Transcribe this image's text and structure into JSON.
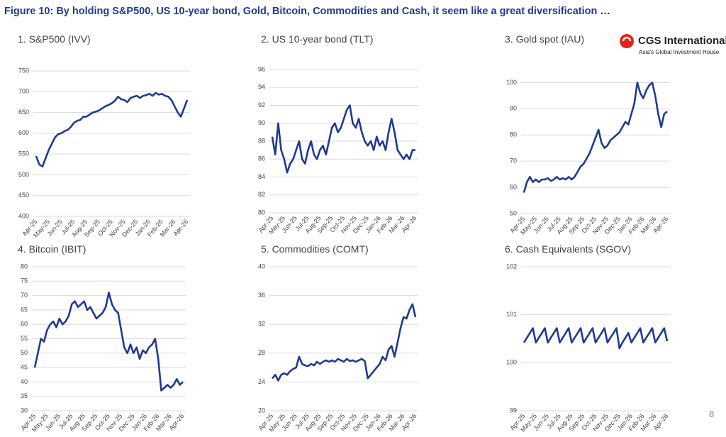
{
  "header": {
    "title": "Figure 10: By holding S&P500, US 10-year bond, Gold, Bitcoin, Commodities and Cash, it seem like a great diversification …"
  },
  "logo": {
    "name": "CGS International",
    "tagline": "Asia's Global Investment House"
  },
  "page_number": 8,
  "chart_data": [
    {
      "type": "line",
      "title": "1. S&P500 (IVV)",
      "color": "#1f3a93",
      "grid": true,
      "categories": [
        "Apr-25",
        null,
        null,
        null,
        "May-25",
        null,
        null,
        null,
        "Jun-25",
        null,
        null,
        null,
        "Jul-25",
        null,
        null,
        null,
        "Aug-25",
        null,
        null,
        null,
        "Sep-25",
        null,
        null,
        null,
        "Oct-25",
        null,
        null,
        null,
        "Nov-25",
        null,
        null,
        null,
        "Dec-25",
        null,
        null,
        null,
        "Jan-26",
        null,
        null,
        null,
        "Feb-26",
        null,
        null,
        null,
        "Mar-26",
        null,
        null,
        null,
        "Apr-26"
      ],
      "values": [
        545,
        525,
        520,
        540,
        560,
        575,
        590,
        598,
        600,
        605,
        608,
        615,
        625,
        630,
        632,
        640,
        640,
        645,
        650,
        652,
        655,
        660,
        665,
        668,
        672,
        678,
        688,
        682,
        680,
        675,
        685,
        688,
        690,
        685,
        690,
        692,
        695,
        690,
        697,
        693,
        695,
        690,
        688,
        680,
        665,
        650,
        640,
        660,
        680
      ],
      "ylim": [
        400,
        750
      ],
      "yticks": [
        400,
        450,
        500,
        550,
        600,
        650,
        700,
        750
      ]
    },
    {
      "type": "line",
      "title": "2. US 10-year bond (TLT)",
      "color": "#1f3a93",
      "grid": true,
      "categories": [
        "Apr-25",
        null,
        null,
        null,
        "May-25",
        null,
        null,
        null,
        "Jun-25",
        null,
        null,
        null,
        "Jul-25",
        null,
        null,
        null,
        "Aug-25",
        null,
        null,
        null,
        "Sep-25",
        null,
        null,
        null,
        "Oct-25",
        null,
        null,
        null,
        "Nov-25",
        null,
        null,
        null,
        "Dec-25",
        null,
        null,
        null,
        "Jan-26",
        null,
        null,
        null,
        "Feb-26",
        null,
        null,
        null,
        "Mar-26",
        null,
        null,
        null,
        "Apr-26"
      ],
      "values": [
        88.5,
        86.5,
        90,
        87,
        86,
        84.5,
        85.5,
        86,
        87,
        88,
        86,
        85.5,
        87,
        88,
        86.5,
        86,
        87,
        87.5,
        86.5,
        88,
        89.5,
        90,
        89,
        89.5,
        90.5,
        91.5,
        92,
        90,
        89.5,
        90.5,
        89,
        88,
        87.5,
        88,
        87,
        88.5,
        87.5,
        88,
        87,
        89,
        90.5,
        89,
        87,
        86.5,
        86,
        86.5,
        86,
        87,
        87
      ],
      "ylim": [
        80,
        96
      ],
      "yticks": [
        80,
        82,
        84,
        86,
        88,
        90,
        92,
        94,
        96
      ]
    },
    {
      "type": "line",
      "title": "3. Gold spot (IAU)",
      "color": "#1f3a93",
      "grid": true,
      "categories": [
        "Apr-25",
        null,
        null,
        null,
        "May-25",
        null,
        null,
        null,
        "Jun-25",
        null,
        null,
        null,
        "Jul-25",
        null,
        null,
        null,
        "Aug-25",
        null,
        null,
        null,
        "Sep-25",
        null,
        null,
        null,
        "Oct-25",
        null,
        null,
        null,
        "Nov-25",
        null,
        null,
        null,
        "Dec-25",
        null,
        null,
        null,
        "Jan-26",
        null,
        null,
        null,
        "Feb-26",
        null,
        null,
        null,
        "Mar-26",
        null,
        null,
        null,
        "Apr-26"
      ],
      "values": [
        58,
        62,
        64,
        62,
        63,
        62,
        63,
        63,
        63.5,
        62.5,
        63,
        64,
        63,
        63.5,
        63,
        64,
        63,
        64,
        66,
        68,
        69,
        71,
        73,
        76,
        79,
        82,
        77,
        75,
        76,
        78,
        79,
        80,
        81,
        83,
        85,
        84,
        88,
        92,
        100,
        96,
        94,
        97,
        99,
        100,
        95,
        88,
        83,
        88,
        89
      ],
      "ylim": [
        50,
        105
      ],
      "yticks": [
        50,
        60,
        70,
        80,
        90,
        100
      ]
    },
    {
      "type": "line",
      "title": "4. Bitcoin (IBIT)",
      "color": "#1f3a93",
      "grid": true,
      "categories": [
        "Apr-25",
        null,
        null,
        null,
        "May-25",
        null,
        null,
        null,
        "Jun-25",
        null,
        null,
        null,
        "Jul-25",
        null,
        null,
        null,
        "Aug-25",
        null,
        null,
        null,
        "Sep-25",
        null,
        null,
        null,
        "Oct-25",
        null,
        null,
        null,
        "Nov-25",
        null,
        null,
        null,
        "Dec-25",
        null,
        null,
        null,
        "Jan-26",
        null,
        null,
        null,
        "Feb-26",
        null,
        null,
        null,
        "Mar-26",
        null,
        null,
        null,
        "Apr-26"
      ],
      "values": [
        45,
        50,
        55,
        54,
        58,
        60,
        61,
        59,
        62,
        60,
        61,
        63,
        67,
        68,
        66,
        67,
        68,
        65,
        66,
        64,
        62,
        63,
        64,
        66,
        71,
        67,
        65,
        64,
        58,
        52,
        50,
        53,
        50,
        52,
        48,
        51,
        50,
        52,
        53,
        55,
        48,
        37,
        38,
        39,
        38,
        39,
        41,
        39,
        40
      ],
      "ylim": [
        30,
        80
      ],
      "yticks": [
        30,
        35,
        40,
        45,
        50,
        55,
        60,
        65,
        70,
        75,
        80
      ]
    },
    {
      "type": "line",
      "title": "5. Commodities (COMT)",
      "color": "#1f3a93",
      "grid": true,
      "categories": [
        "Apr-25",
        null,
        null,
        null,
        "May-25",
        null,
        null,
        null,
        "Jun-25",
        null,
        null,
        null,
        "Jul-25",
        null,
        null,
        null,
        "Aug-25",
        null,
        null,
        null,
        "Sep-25",
        null,
        null,
        null,
        "Oct-25",
        null,
        null,
        null,
        "Nov-25",
        null,
        null,
        null,
        "Dec-25",
        null,
        null,
        null,
        "Jan-26",
        null,
        null,
        null,
        "Feb-26",
        null,
        null,
        null,
        "Mar-26",
        null,
        null,
        null,
        "Apr-26"
      ],
      "values": [
        24.5,
        25,
        24.2,
        25,
        25.2,
        25,
        25.5,
        25.8,
        26,
        27.5,
        26.5,
        26.3,
        26.2,
        26.5,
        26.3,
        26.8,
        26.5,
        26.8,
        27,
        26.8,
        27,
        26.8,
        27.2,
        27,
        26.8,
        27.2,
        26.9,
        27,
        26.8,
        27,
        27.2,
        26.9,
        24.5,
        25,
        25.5,
        26,
        26.5,
        27.5,
        27,
        28.5,
        29,
        27.5,
        29.5,
        31.5,
        33,
        32.8,
        34,
        34.8,
        33
      ],
      "ylim": [
        20,
        40
      ],
      "yticks": [
        20,
        24,
        28,
        32,
        36,
        40
      ]
    },
    {
      "type": "line",
      "title": "6. Cash Equivalents (SGOV)",
      "color": "#1f3a93",
      "grid": true,
      "categories": [
        "Apr-25",
        null,
        null,
        null,
        "May-25",
        null,
        null,
        null,
        "Jun-25",
        null,
        null,
        null,
        "Jul-25",
        null,
        null,
        null,
        "Aug-25",
        null,
        null,
        null,
        "Sep-25",
        null,
        null,
        null,
        "Oct-25",
        null,
        null,
        null,
        "Nov-25",
        null,
        null,
        null,
        "Dec-25",
        null,
        null,
        null,
        "Jan-26",
        null,
        null,
        null,
        "Feb-26",
        null,
        null,
        null,
        "Mar-26",
        null,
        null,
        null,
        "Apr-26"
      ],
      "values": [
        100.42,
        100.52,
        100.62,
        100.72,
        100.42,
        100.52,
        100.62,
        100.72,
        100.42,
        100.52,
        100.62,
        100.72,
        100.42,
        100.52,
        100.62,
        100.72,
        100.42,
        100.52,
        100.62,
        100.72,
        100.42,
        100.52,
        100.62,
        100.72,
        100.42,
        100.52,
        100.62,
        100.72,
        100.42,
        100.52,
        100.62,
        100.72,
        100.3,
        100.42,
        100.52,
        100.62,
        100.42,
        100.52,
        100.62,
        100.72,
        100.42,
        100.52,
        100.62,
        100.72,
        100.42,
        100.52,
        100.62,
        100.72,
        100.45
      ],
      "ylim": [
        99,
        102
      ],
      "yticks": [
        99,
        100,
        101,
        102
      ]
    }
  ]
}
